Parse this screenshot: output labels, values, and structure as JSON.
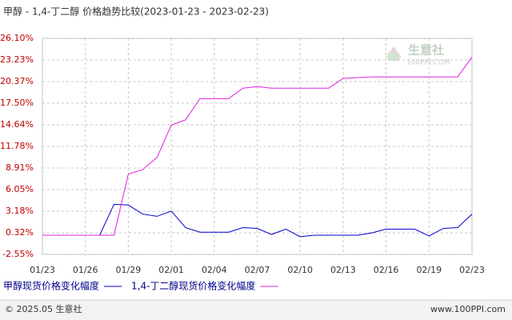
{
  "chart_data": {
    "type": "line",
    "title": "甲醇 - 1,4-丁二醇 价格趋势比较(2023-01-23 - 2023-02-23)",
    "categories": [
      "01/23",
      null,
      null,
      "01/26",
      null,
      null,
      "01/29",
      null,
      null,
      "02/01",
      null,
      null,
      "02/04",
      null,
      null,
      "02/07",
      null,
      null,
      "02/10",
      null,
      null,
      "02/13",
      null,
      null,
      "02/16",
      null,
      null,
      "02/19",
      null,
      null,
      "02/23"
    ],
    "series": [
      {
        "name": "甲醇现货价格变化幅度",
        "color": "#0000cc",
        "values": [
          0,
          0,
          0,
          0,
          0,
          4.1,
          4.0,
          2.8,
          2.5,
          3.2,
          1.0,
          0.4,
          0.4,
          0.4,
          1.0,
          0.9,
          0.1,
          0.8,
          -0.2,
          0,
          0,
          0,
          0,
          0.3,
          0.8,
          0.8,
          0.8,
          -0.1,
          0.9,
          1.0,
          2.8
        ]
      },
      {
        "name": "1,4-丁二醇现货价格变化幅度",
        "color": "#e020e0",
        "values": [
          0,
          0,
          0,
          0,
          0,
          0,
          8.1,
          8.7,
          10.3,
          14.6,
          15.3,
          18.1,
          18.1,
          18.1,
          19.5,
          19.7,
          19.5,
          19.5,
          19.5,
          19.5,
          19.5,
          20.8,
          20.9,
          21.0,
          21.0,
          21.0,
          21.0,
          21.0,
          21.0,
          21.0,
          23.6
        ]
      }
    ],
    "ylim": [
      -2.55,
      26.1
    ],
    "yticks": [
      {
        "value": 26.1,
        "label": "26.10%"
      },
      {
        "value": 23.23,
        "label": "23.23%"
      },
      {
        "value": 20.37,
        "label": "20.37%"
      },
      {
        "value": 17.5,
        "label": "17.50%"
      },
      {
        "value": 14.64,
        "label": "14.64%"
      },
      {
        "value": 11.78,
        "label": "11.78%"
      },
      {
        "value": 8.91,
        "label": "8.91%"
      },
      {
        "value": 6.05,
        "label": "6.05%"
      },
      {
        "value": 3.18,
        "label": "3.18%"
      },
      {
        "value": 0.32,
        "label": "0.32%"
      },
      {
        "value": -2.55,
        "label": "-2.55%"
      }
    ],
    "grid": true
  },
  "watermark": {
    "name": "生意社",
    "site": "100PPI.COM"
  },
  "footer": {
    "copyright": "© 2025.05 生意社",
    "site": "www.100PPI.com"
  }
}
